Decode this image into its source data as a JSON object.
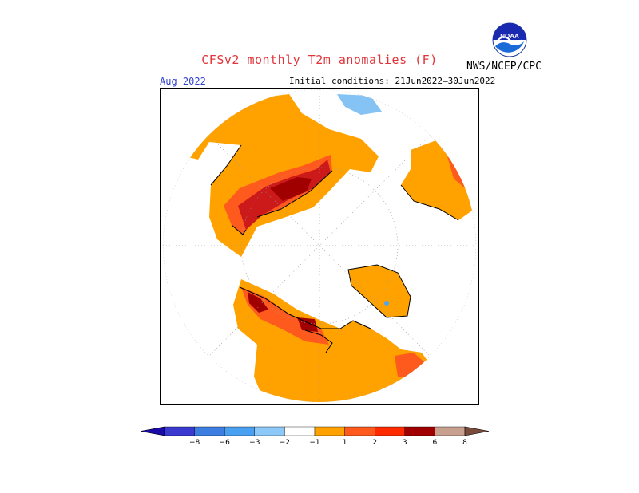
{
  "header": {
    "title": "CFSv2 monthly T2m anomalies (F)",
    "agency": "NWS/NCEP/CPC",
    "logo_text": "NOAA",
    "target_month": "Aug 2022",
    "initial_conditions": "Initial conditions: 21Jun2022–30Jun2022"
  },
  "colors": {
    "title": "#e0343a",
    "month": "#3344cc",
    "anom_pos_1": "#ffa200",
    "anom_pos_2": "#ff5a1e",
    "anom_pos_3": "#cc1a1a",
    "anom_pos_4": "#a00000",
    "anom_neg_1": "#86c3f5",
    "anom_neg_2": "#50a5f0"
  },
  "colorbar": {
    "labels": [
      "−8",
      "−6",
      "−3",
      "−2",
      "−1",
      "1",
      "2",
      "3",
      "6",
      "8"
    ],
    "segments": [
      {
        "color": "#1a0aa8"
      },
      {
        "color": "#3a3ad0"
      },
      {
        "color": "#3d7fe0"
      },
      {
        "color": "#4aa0f0"
      },
      {
        "color": "#8cc8f8"
      },
      {
        "color": "#ffffff"
      },
      {
        "color": "#ffa200"
      },
      {
        "color": "#ff5a1e"
      },
      {
        "color": "#ff2a00"
      },
      {
        "color": "#a00000"
      },
      {
        "color": "#c8a090"
      },
      {
        "color": "#7a4a3a"
      }
    ]
  }
}
